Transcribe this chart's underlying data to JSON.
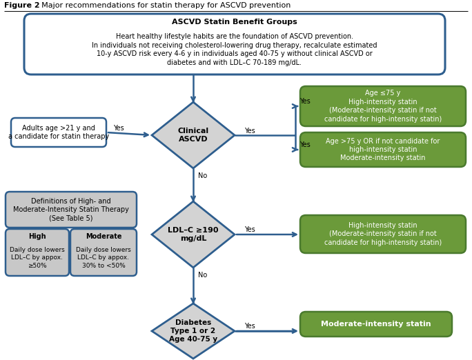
{
  "title_bold": "Figure 2",
  "title_rest": ". Major recommendations for statin therapy for ASCVD prevention",
  "top_box": {
    "title": "ASCVD Statin Benefit Groups",
    "body": "Heart healthy lifestyle habits are the foundation of ASCVD prevention.\nIn individuals not receiving cholesterol-lowering drug therapy, recalculate estimated\n10-y ASCVD risk every 4-6 y in individuals aged 40-75 y without clinical ASCVD or\ndiabetes and with LDL–C 70-189 mg/dL.",
    "border_color": "#2E5E8E",
    "bg_color": "#FFFFFF"
  },
  "left_box1": {
    "text": "Adults age >21 y and\na candidate for statin therapy",
    "border_color": "#2E5E8E",
    "bg_color": "#FFFFFF"
  },
  "diamond1_text": "Clinical\nASCVD",
  "green_box1_text": "Age ≤75 y\nHigh-intensity statin\n(Moderate-intensity statin if not\ncandidate for high-intensity statin)",
  "green_box2_text": "Age >75 y OR if not candidate for\nhigh-intensity statin\nModerate-intensity statin",
  "def_box_main_text": "Definitions of High- and\nModerate-Intensity Statin Therapy\n(See Table 5)",
  "def_box_high_title": "High",
  "def_box_high_body": "Daily dose lowers\nLDL–C by appox.\n≥50%",
  "def_box_mod_title": "Moderate",
  "def_box_mod_body": "Daily dose lowers\nLDL–C by appox.\n30% to <50%",
  "diamond2_text": "LDL–C ≥190\nmg/dL",
  "green_box3_text": "High-intensity statin\n(Moderate-intensity statin if not\ncandidate for high-intensity statin)",
  "diamond3_text": "Diabetes\nType 1 or 2\nAge 40-75 y",
  "green_box4_text": "Moderate-intensity statin",
  "arrow_color": "#2E5E8E",
  "diamond_fill": "#D3D3D3",
  "green_fill": "#6B9A3A",
  "green_edge": "#4A7A2E",
  "def_fill": "#C8C8C8",
  "bg_color": "#FFFFFF"
}
